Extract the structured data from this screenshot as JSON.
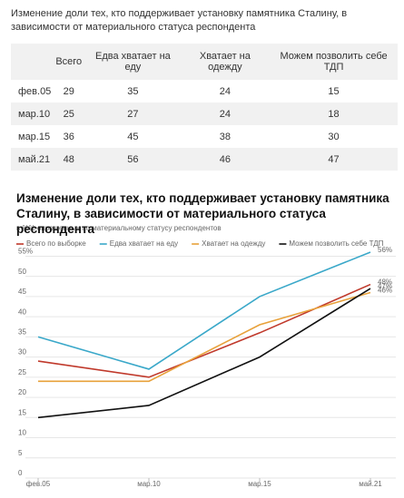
{
  "table": {
    "title": "Изменение доли тех, кто поддерживает установку памятника Сталину, в зависимости от материального статуса респондента",
    "columns": [
      "Всего",
      "Едва хватает на еду",
      "Хватает на одежду",
      "Можем позволить себе ТДП"
    ],
    "rows": [
      {
        "label": "фев.05",
        "values": [
          29,
          35,
          24,
          15
        ]
      },
      {
        "label": "мар.10",
        "values": [
          25,
          27,
          24,
          18
        ]
      },
      {
        "label": "мар.15",
        "values": [
          36,
          45,
          38,
          30
        ]
      },
      {
        "label": "май.21",
        "values": [
          48,
          56,
          46,
          47
        ]
      }
    ]
  },
  "chart_data": {
    "type": "line",
    "title": "Изменение доли тех, кто поддерживает установку памятника Сталину, в зависимости от материального статуса респондента",
    "subtitle": "в %% опрошенных по материальному статусу респондентов",
    "categories": [
      "фев.05",
      "мар.10",
      "мар.15",
      "май.21"
    ],
    "series": [
      {
        "name": "Всего по выборке",
        "color": "#c0392b",
        "values": [
          29,
          25,
          36,
          48
        ],
        "value_labels": [
          null,
          null,
          null,
          "48%"
        ]
      },
      {
        "name": "Едва хватает на еду",
        "color": "#3aa8c9",
        "values": [
          35,
          27,
          45,
          56
        ],
        "value_labels": [
          null,
          null,
          null,
          "56%"
        ]
      },
      {
        "name": "Хватает на одежду",
        "color": "#e8a13a",
        "values": [
          24,
          24,
          38,
          46
        ],
        "value_labels": [
          null,
          null,
          null,
          "46%"
        ]
      },
      {
        "name": "Можем позволить себе ТДП",
        "color": "#111111",
        "values": [
          15,
          18,
          30,
          47
        ],
        "value_labels": [
          null,
          null,
          null,
          "47%"
        ]
      }
    ],
    "ylim": [
      0,
      56
    ],
    "yticks": [
      0,
      5,
      10,
      15,
      20,
      25,
      30,
      35,
      40,
      45,
      50,
      {
        "value": 55,
        "label": "55%"
      }
    ],
    "grid": true
  }
}
